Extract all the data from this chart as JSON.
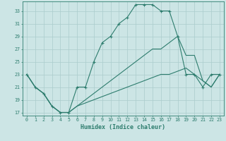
{
  "xlabel": "Humidex (Indice chaleur)",
  "ylabel": "",
  "bg_color": "#cce5e5",
  "grid_color": "#aacccc",
  "line_color": "#2e7d6e",
  "xlim": [
    -0.5,
    23.5
  ],
  "ylim": [
    16.5,
    34.5
  ],
  "xticks": [
    0,
    1,
    2,
    3,
    4,
    5,
    6,
    7,
    8,
    9,
    10,
    11,
    12,
    13,
    14,
    15,
    16,
    17,
    18,
    19,
    20,
    21,
    22,
    23
  ],
  "yticks": [
    17,
    19,
    21,
    23,
    25,
    27,
    29,
    31,
    33
  ],
  "lines": [
    {
      "x": [
        0,
        1,
        2,
        3,
        4,
        5,
        6,
        7,
        8,
        9,
        10,
        11,
        12,
        13,
        14,
        15,
        16,
        17,
        18,
        19,
        20,
        21,
        22,
        23
      ],
      "y": [
        23,
        21,
        20,
        18,
        17,
        17,
        21,
        21,
        25,
        28,
        29,
        31,
        32,
        34,
        34,
        34,
        33,
        33,
        29,
        23,
        23,
        21,
        23,
        23
      ],
      "marker": "+"
    },
    {
      "x": [
        0,
        1,
        2,
        3,
        4,
        5,
        6,
        7,
        8,
        9,
        10,
        11,
        12,
        13,
        14,
        15,
        16,
        17,
        18,
        19,
        20,
        21,
        22,
        23
      ],
      "y": [
        23,
        21,
        20,
        18,
        17,
        17,
        18,
        19,
        20,
        21,
        22,
        23,
        24,
        25,
        26,
        27,
        27,
        28,
        29,
        26,
        26,
        22,
        21,
        23
      ],
      "marker": null
    },
    {
      "x": [
        0,
        1,
        2,
        3,
        4,
        5,
        6,
        7,
        8,
        9,
        10,
        11,
        12,
        13,
        14,
        15,
        16,
        17,
        18,
        19,
        20,
        21,
        22,
        23
      ],
      "y": [
        23,
        21,
        20,
        18,
        17,
        17,
        18,
        18.5,
        19,
        19.5,
        20,
        20.5,
        21,
        21.5,
        22,
        22.5,
        23,
        23,
        23.5,
        24,
        23,
        22,
        21,
        23
      ],
      "marker": null
    }
  ]
}
